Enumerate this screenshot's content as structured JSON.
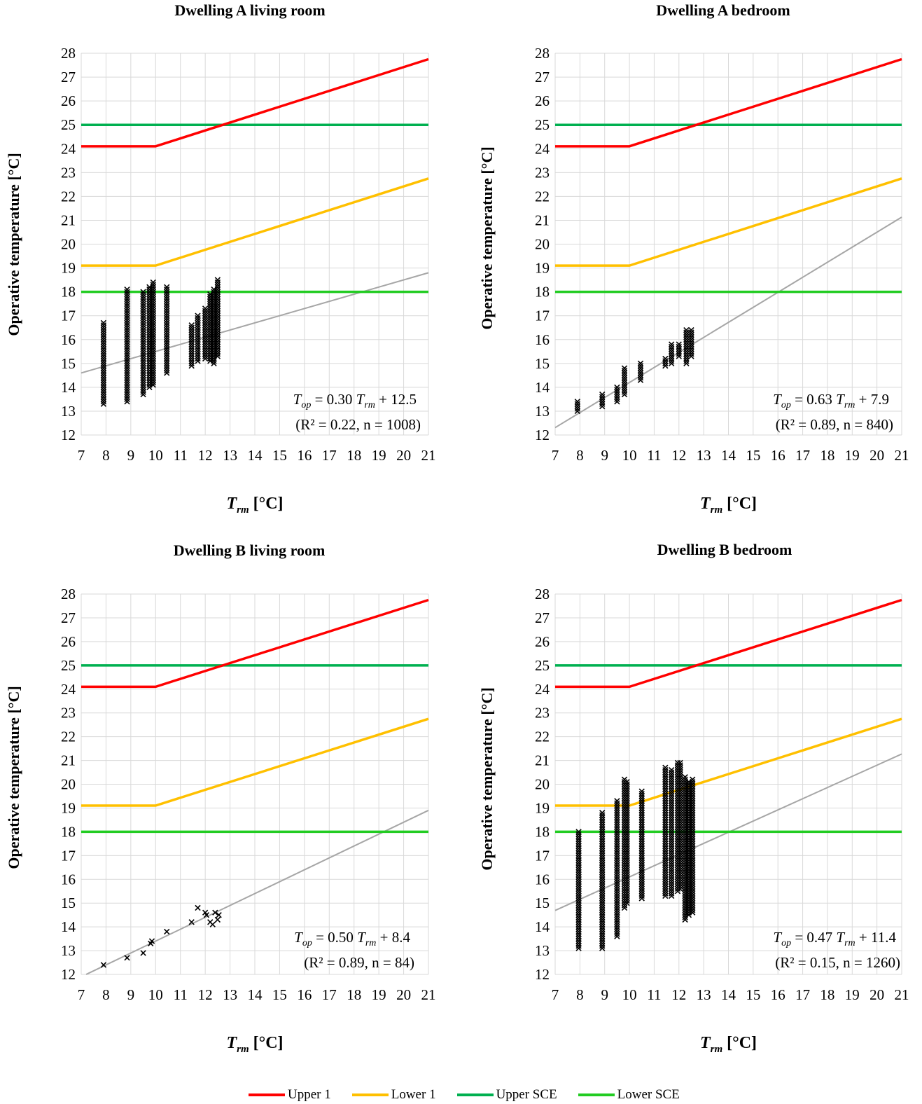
{
  "colors": {
    "upper1": "#ff0000",
    "lower1": "#ffc000",
    "upperSCE": "#00b050",
    "lowerSCE": "#22cc22",
    "regression": "#a6a6a6",
    "grid": "#d9d9d9",
    "marker": "#000000"
  },
  "legend": [
    {
      "label": "Upper 1",
      "color": "#ff0000"
    },
    {
      "label": "Lower 1",
      "color": "#ffc000"
    },
    {
      "label": "Upper SCE",
      "color": "#00b050"
    },
    {
      "label": "Lower SCE",
      "color": "#22cc22"
    }
  ],
  "chart_data": [
    {
      "type": "scatter",
      "title": "Dwelling A living room",
      "xlabel": "T_rm [°C]",
      "ylabel": "Operative temperature [°C]",
      "xlim": [
        7,
        21
      ],
      "ylim": [
        12,
        28
      ],
      "xticks": [
        7,
        8,
        9,
        10,
        11,
        12,
        13,
        14,
        15,
        16,
        17,
        18,
        19,
        20,
        21
      ],
      "yticks": [
        12,
        13,
        14,
        15,
        16,
        17,
        18,
        19,
        20,
        21,
        22,
        23,
        24,
        25,
        26,
        27,
        28
      ],
      "grid": true,
      "reference_lines": {
        "upper1": [
          [
            7,
            24.1
          ],
          [
            10,
            24.1
          ],
          [
            21,
            27.75
          ]
        ],
        "lower1": [
          [
            7,
            19.1
          ],
          [
            10,
            19.1
          ],
          [
            21,
            22.75
          ]
        ],
        "upperSCE": [
          [
            7,
            25
          ],
          [
            21,
            25
          ]
        ],
        "lowerSCE": [
          [
            7,
            18
          ],
          [
            21,
            18
          ]
        ]
      },
      "regression": {
        "slope": 0.3,
        "intercept": 12.5
      },
      "equation_lhs": "T",
      "equation_lhs_sub": "op",
      "equation_mid": " = 0.30 ",
      "equation_var": "T",
      "equation_var_sub": "rm",
      "equation_rhs": " + 12.5",
      "stats": "(R² = 0.22, n = 1008)",
      "scatter_columns": [
        {
          "x": 7.9,
          "ymin": 13.3,
          "ymax": 16.7
        },
        {
          "x": 8.85,
          "ymin": 13.4,
          "ymax": 18.1
        },
        {
          "x": 9.5,
          "ymin": 13.7,
          "ymax": 18.0
        },
        {
          "x": 9.75,
          "ymin": 14.0,
          "ymax": 18.2
        },
        {
          "x": 9.9,
          "ymin": 14.1,
          "ymax": 18.4
        },
        {
          "x": 10.45,
          "ymin": 14.6,
          "ymax": 18.2
        },
        {
          "x": 11.45,
          "ymin": 14.9,
          "ymax": 16.6
        },
        {
          "x": 11.7,
          "ymin": 15.1,
          "ymax": 17.0
        },
        {
          "x": 12.0,
          "ymin": 15.2,
          "ymax": 17.3
        },
        {
          "x": 12.2,
          "ymin": 15.1,
          "ymax": 17.9
        },
        {
          "x": 12.35,
          "ymin": 15.0,
          "ymax": 18.1
        },
        {
          "x": 12.5,
          "ymin": 15.3,
          "ymax": 18.5
        }
      ]
    },
    {
      "type": "scatter",
      "title": "Dwelling A bedroom",
      "xlabel": "T_rm [°C]",
      "ylabel": "Operative temperature [°C]",
      "xlim": [
        7,
        21
      ],
      "ylim": [
        12,
        28
      ],
      "xticks": [
        7,
        8,
        9,
        10,
        11,
        12,
        13,
        14,
        15,
        16,
        17,
        18,
        19,
        20,
        21
      ],
      "yticks": [
        12,
        13,
        14,
        15,
        16,
        17,
        18,
        19,
        20,
        21,
        22,
        23,
        24,
        25,
        26,
        27,
        28
      ],
      "grid": true,
      "reference_lines": {
        "upper1": [
          [
            7,
            24.1
          ],
          [
            10,
            24.1
          ],
          [
            21,
            27.75
          ]
        ],
        "lower1": [
          [
            7,
            19.1
          ],
          [
            10,
            19.1
          ],
          [
            21,
            22.75
          ]
        ],
        "upperSCE": [
          [
            7,
            25
          ],
          [
            21,
            25
          ]
        ],
        "lowerSCE": [
          [
            7,
            18
          ],
          [
            21,
            18
          ]
        ]
      },
      "regression": {
        "slope": 0.63,
        "intercept": 7.9
      },
      "equation_lhs": "T",
      "equation_lhs_sub": "op",
      "equation_mid": " = 0.63 ",
      "equation_var": "T",
      "equation_var_sub": "rm",
      "equation_rhs": " + 7.9",
      "stats": "(R² = 0.89, n = 840)",
      "scatter_columns": [
        {
          "x": 7.9,
          "ymin": 13.0,
          "ymax": 13.4
        },
        {
          "x": 8.9,
          "ymin": 13.2,
          "ymax": 13.7
        },
        {
          "x": 9.5,
          "ymin": 13.4,
          "ymax": 14.0
        },
        {
          "x": 9.8,
          "ymin": 13.7,
          "ymax": 14.8
        },
        {
          "x": 10.45,
          "ymin": 14.3,
          "ymax": 15.0
        },
        {
          "x": 11.45,
          "ymin": 14.9,
          "ymax": 15.2
        },
        {
          "x": 11.7,
          "ymin": 15.0,
          "ymax": 15.8
        },
        {
          "x": 12.0,
          "ymin": 15.3,
          "ymax": 15.8
        },
        {
          "x": 12.3,
          "ymin": 15.0,
          "ymax": 16.4
        },
        {
          "x": 12.5,
          "ymin": 15.3,
          "ymax": 16.4
        }
      ]
    },
    {
      "type": "scatter",
      "title": "Dwelling B living room",
      "xlabel": "T_rm [°C]",
      "ylabel": "Operative temperature [°C]",
      "xlim": [
        7,
        21
      ],
      "ylim": [
        12,
        28
      ],
      "xticks": [
        7,
        8,
        9,
        10,
        11,
        12,
        13,
        14,
        15,
        16,
        17,
        18,
        19,
        20,
        21
      ],
      "yticks": [
        12,
        13,
        14,
        15,
        16,
        17,
        18,
        19,
        20,
        21,
        22,
        23,
        24,
        25,
        26,
        27,
        28
      ],
      "grid": true,
      "reference_lines": {
        "upper1": [
          [
            7,
            24.1
          ],
          [
            10,
            24.1
          ],
          [
            21,
            27.75
          ]
        ],
        "lower1": [
          [
            7,
            19.1
          ],
          [
            10,
            19.1
          ],
          [
            21,
            22.75
          ]
        ],
        "upperSCE": [
          [
            7,
            25
          ],
          [
            21,
            25
          ]
        ],
        "lowerSCE": [
          [
            7,
            18
          ],
          [
            21,
            18
          ]
        ]
      },
      "regression": {
        "slope": 0.5,
        "intercept": 8.4
      },
      "equation_lhs": "T",
      "equation_lhs_sub": "op",
      "equation_mid": " = 0.50 ",
      "equation_var": "T",
      "equation_var_sub": "rm",
      "equation_rhs": " + 8.4",
      "stats": "(R² = 0.89, n = 84)",
      "scatter_points": [
        [
          7.9,
          12.4
        ],
        [
          8.85,
          12.7
        ],
        [
          9.5,
          12.9
        ],
        [
          9.8,
          13.3
        ],
        [
          9.85,
          13.4
        ],
        [
          10.45,
          13.8
        ],
        [
          11.45,
          14.2
        ],
        [
          11.7,
          14.8
        ],
        [
          12.0,
          14.6
        ],
        [
          12.05,
          14.5
        ],
        [
          12.2,
          14.2
        ],
        [
          12.3,
          14.1
        ],
        [
          12.4,
          14.6
        ],
        [
          12.5,
          14.3
        ],
        [
          12.55,
          14.5
        ]
      ]
    },
    {
      "type": "scatter",
      "title": "Dwelling B bedroom",
      "xlabel": "T_rm [°C]",
      "ylabel": "Operative temperature [°C]",
      "xlim": [
        7,
        21
      ],
      "ylim": [
        12,
        28
      ],
      "xticks": [
        7,
        8,
        9,
        10,
        11,
        12,
        13,
        14,
        15,
        16,
        17,
        18,
        19,
        20,
        21
      ],
      "yticks": [
        12,
        13,
        14,
        15,
        16,
        17,
        18,
        19,
        20,
        21,
        22,
        23,
        24,
        25,
        26,
        27,
        28
      ],
      "grid": true,
      "reference_lines": {
        "upper1": [
          [
            7,
            24.1
          ],
          [
            10,
            24.1
          ],
          [
            21,
            27.75
          ]
        ],
        "lower1": [
          [
            7,
            19.1
          ],
          [
            10,
            19.1
          ],
          [
            21,
            22.75
          ]
        ],
        "upperSCE": [
          [
            7,
            25
          ],
          [
            21,
            25
          ]
        ],
        "lowerSCE": [
          [
            7,
            18
          ],
          [
            21,
            18
          ]
        ]
      },
      "regression": {
        "slope": 0.47,
        "intercept": 11.4
      },
      "equation_lhs": "T",
      "equation_lhs_sub": "op",
      "equation_mid": " = 0.47 ",
      "equation_var": "T",
      "equation_var_sub": "rm",
      "equation_rhs": " + 11.4",
      "stats": "(R² = 0.15, n = 1260)",
      "scatter_columns": [
        {
          "x": 7.95,
          "ymin": 13.1,
          "ymax": 18.0
        },
        {
          "x": 8.9,
          "ymin": 13.1,
          "ymax": 18.8
        },
        {
          "x": 9.5,
          "ymin": 13.6,
          "ymax": 19.3
        },
        {
          "x": 9.8,
          "ymin": 14.8,
          "ymax": 20.2
        },
        {
          "x": 9.9,
          "ymin": 15.0,
          "ymax": 20.1
        },
        {
          "x": 10.5,
          "ymin": 15.2,
          "ymax": 19.7
        },
        {
          "x": 11.45,
          "ymin": 15.3,
          "ymax": 20.7
        },
        {
          "x": 11.7,
          "ymin": 15.3,
          "ymax": 20.6
        },
        {
          "x": 11.95,
          "ymin": 15.5,
          "ymax": 20.9
        },
        {
          "x": 12.05,
          "ymin": 15.6,
          "ymax": 20.9
        },
        {
          "x": 12.25,
          "ymin": 14.3,
          "ymax": 20.3
        },
        {
          "x": 12.4,
          "ymin": 14.5,
          "ymax": 20.1
        },
        {
          "x": 12.55,
          "ymin": 14.6,
          "ymax": 20.2
        }
      ]
    }
  ]
}
